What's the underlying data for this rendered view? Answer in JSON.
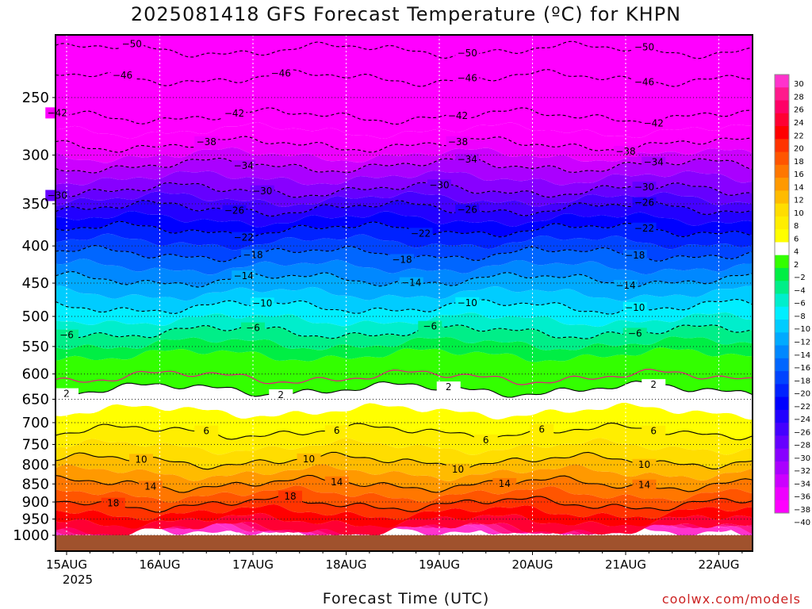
{
  "title": "2025081418 GFS Forecast Temperature (ºC) for KHPN",
  "credit": "coolwx.com/models",
  "chart_data": {
    "type": "heatmap",
    "title": "2025081418 GFS Forecast Temperature (ºC) for KHPN",
    "xlabel": "Forecast Time (UTC)",
    "ylabel": "",
    "x_ticks": [
      {
        "label": "15AUG",
        "sub": "2025",
        "day": 15
      },
      {
        "label": "16AUG",
        "sub": "",
        "day": 16
      },
      {
        "label": "17AUG",
        "sub": "",
        "day": 17
      },
      {
        "label": "18AUG",
        "sub": "",
        "day": 18
      },
      {
        "label": "19AUG",
        "sub": "",
        "day": 19
      },
      {
        "label": "20AUG",
        "sub": "",
        "day": 20
      },
      {
        "label": "21AUG",
        "sub": "",
        "day": 21
      },
      {
        "label": "22AUG",
        "sub": "",
        "day": 22
      }
    ],
    "xlim": [
      14.75,
      22.25
    ],
    "y_axis": "pressure (log scale, inverted)",
    "y_ticks": [
      250,
      300,
      350,
      400,
      450,
      500,
      550,
      600,
      650,
      700,
      750,
      800,
      850,
      900,
      950,
      1000
    ],
    "ylim": [
      200,
      1030
    ],
    "colorbar": {
      "labels": [
        30,
        28,
        26,
        24,
        22,
        20,
        18,
        16,
        14,
        12,
        10,
        8,
        6,
        4,
        2,
        -2,
        -4,
        -6,
        -8,
        -10,
        -12,
        -14,
        -16,
        -18,
        -20,
        -22,
        -24,
        -26,
        -28,
        -30,
        -32,
        -34,
        -36,
        -38,
        -40
      ],
      "colors": [
        "#ff33cc",
        "#ff1a8c",
        "#ff0066",
        "#ff0033",
        "#ff0000",
        "#ff3300",
        "#ff5500",
        "#ff7700",
        "#ff9900",
        "#ffbb00",
        "#ffdd00",
        "#ffee00",
        "#ffff00",
        "#ffffff",
        "#33ff00",
        "#00ee44",
        "#00ee88",
        "#00eecc",
        "#00eeff",
        "#00ccff",
        "#00aaff",
        "#0088ff",
        "#0066ff",
        "#0044ff",
        "#0022ff",
        "#0000ff",
        "#2200ff",
        "#4400ff",
        "#6600ff",
        "#8800ff",
        "#aa00ff",
        "#cc00ff",
        "#ee00ff",
        "#ff00ff"
      ]
    },
    "contour_levels": [
      -50,
      -46,
      -42,
      -38,
      -34,
      -30,
      -26,
      -22,
      -18,
      -14,
      -10,
      -6,
      2,
      6,
      10,
      14,
      18
    ],
    "levels_profile": [
      {
        "p": 200,
        "t": -55
      },
      {
        "p": 215,
        "t": -50
      },
      {
        "p": 235,
        "t": -46
      },
      {
        "p": 265,
        "t": -42
      },
      {
        "p": 290,
        "t": -38
      },
      {
        "p": 310,
        "t": -34
      },
      {
        "p": 335,
        "t": -30
      },
      {
        "p": 355,
        "t": -26
      },
      {
        "p": 380,
        "t": -22
      },
      {
        "p": 410,
        "t": -18
      },
      {
        "p": 445,
        "t": -14
      },
      {
        "p": 485,
        "t": -10
      },
      {
        "p": 525,
        "t": -6
      },
      {
        "p": 565,
        "t": -2
      },
      {
        "p": 600,
        "t": 0
      },
      {
        "p": 630,
        "t": 2
      },
      {
        "p": 720,
        "t": 6
      },
      {
        "p": 790,
        "t": 10
      },
      {
        "p": 850,
        "t": 14
      },
      {
        "p": 905,
        "t": 18
      },
      {
        "p": 980,
        "t": 24
      }
    ],
    "contour_labels": [
      {
        "t": -50,
        "x": [
          15.7,
          19.3,
          21.2
        ]
      },
      {
        "t": -46,
        "x": [
          15.6,
          17.3,
          19.3,
          21.2
        ]
      },
      {
        "t": -42,
        "x": [
          14.9,
          16.8,
          19.2,
          21.3
        ]
      },
      {
        "t": -38,
        "x": [
          16.5,
          19.2,
          21.0
        ]
      },
      {
        "t": -34,
        "x": [
          16.9,
          19.3,
          21.3
        ]
      },
      {
        "t": -30,
        "x": [
          14.9,
          17.1,
          19.0,
          21.2
        ]
      },
      {
        "t": -26,
        "x": [
          16.8,
          19.3,
          21.2
        ]
      },
      {
        "t": -22,
        "x": [
          16.9,
          18.8,
          21.2
        ]
      },
      {
        "t": -18,
        "x": [
          17.0,
          18.6,
          21.1
        ]
      },
      {
        "t": -14,
        "x": [
          16.9,
          18.7,
          21.0
        ]
      },
      {
        "t": -10,
        "x": [
          17.1,
          19.3,
          21.1
        ]
      },
      {
        "t": -6,
        "x": [
          15.0,
          17.0,
          18.9,
          21.1
        ]
      },
      {
        "t": 2,
        "x": [
          15.0,
          17.3,
          19.1,
          21.3
        ]
      },
      {
        "t": 6,
        "x": [
          16.5,
          17.9,
          19.5,
          20.1,
          21.3
        ]
      },
      {
        "t": 10,
        "x": [
          15.8,
          17.6,
          19.2,
          21.2
        ]
      },
      {
        "t": 14,
        "x": [
          15.9,
          17.9,
          19.7,
          21.2
        ]
      },
      {
        "t": 18,
        "x": [
          15.5,
          17.4
        ]
      }
    ],
    "grid": true,
    "legend": "right"
  }
}
